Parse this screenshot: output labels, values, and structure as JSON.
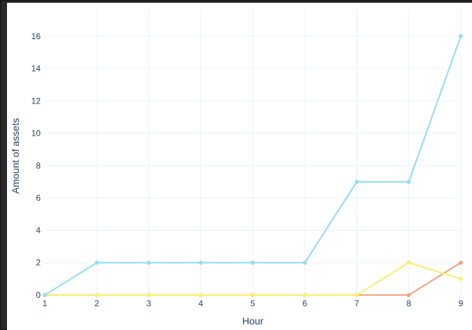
{
  "chart_data": {
    "type": "line",
    "title": "",
    "xlabel": "Hour",
    "ylabel": "Amount of assets",
    "x": [
      1,
      2,
      3,
      4,
      5,
      6,
      7,
      8,
      9
    ],
    "xlim": [
      1,
      9
    ],
    "ylim": [
      0,
      17.2
    ],
    "x_ticks": [
      "1",
      "2",
      "3",
      "4",
      "5",
      "6",
      "7",
      "8",
      "9"
    ],
    "y_ticks": [
      0,
      2,
      4,
      6,
      8,
      10,
      12,
      14,
      16
    ],
    "grid": true,
    "legend": "none",
    "series": [
      {
        "color": "#f4a582",
        "values": [
          0,
          0,
          0,
          0,
          0,
          0,
          0,
          0,
          2
        ]
      },
      {
        "color": "#fdee73",
        "values": [
          0,
          0,
          0,
          0,
          0,
          0,
          0,
          2,
          1
        ]
      },
      {
        "color": "#9adcf2",
        "values": [
          0,
          2,
          2,
          2,
          2,
          2,
          7,
          7,
          16
        ]
      }
    ]
  }
}
